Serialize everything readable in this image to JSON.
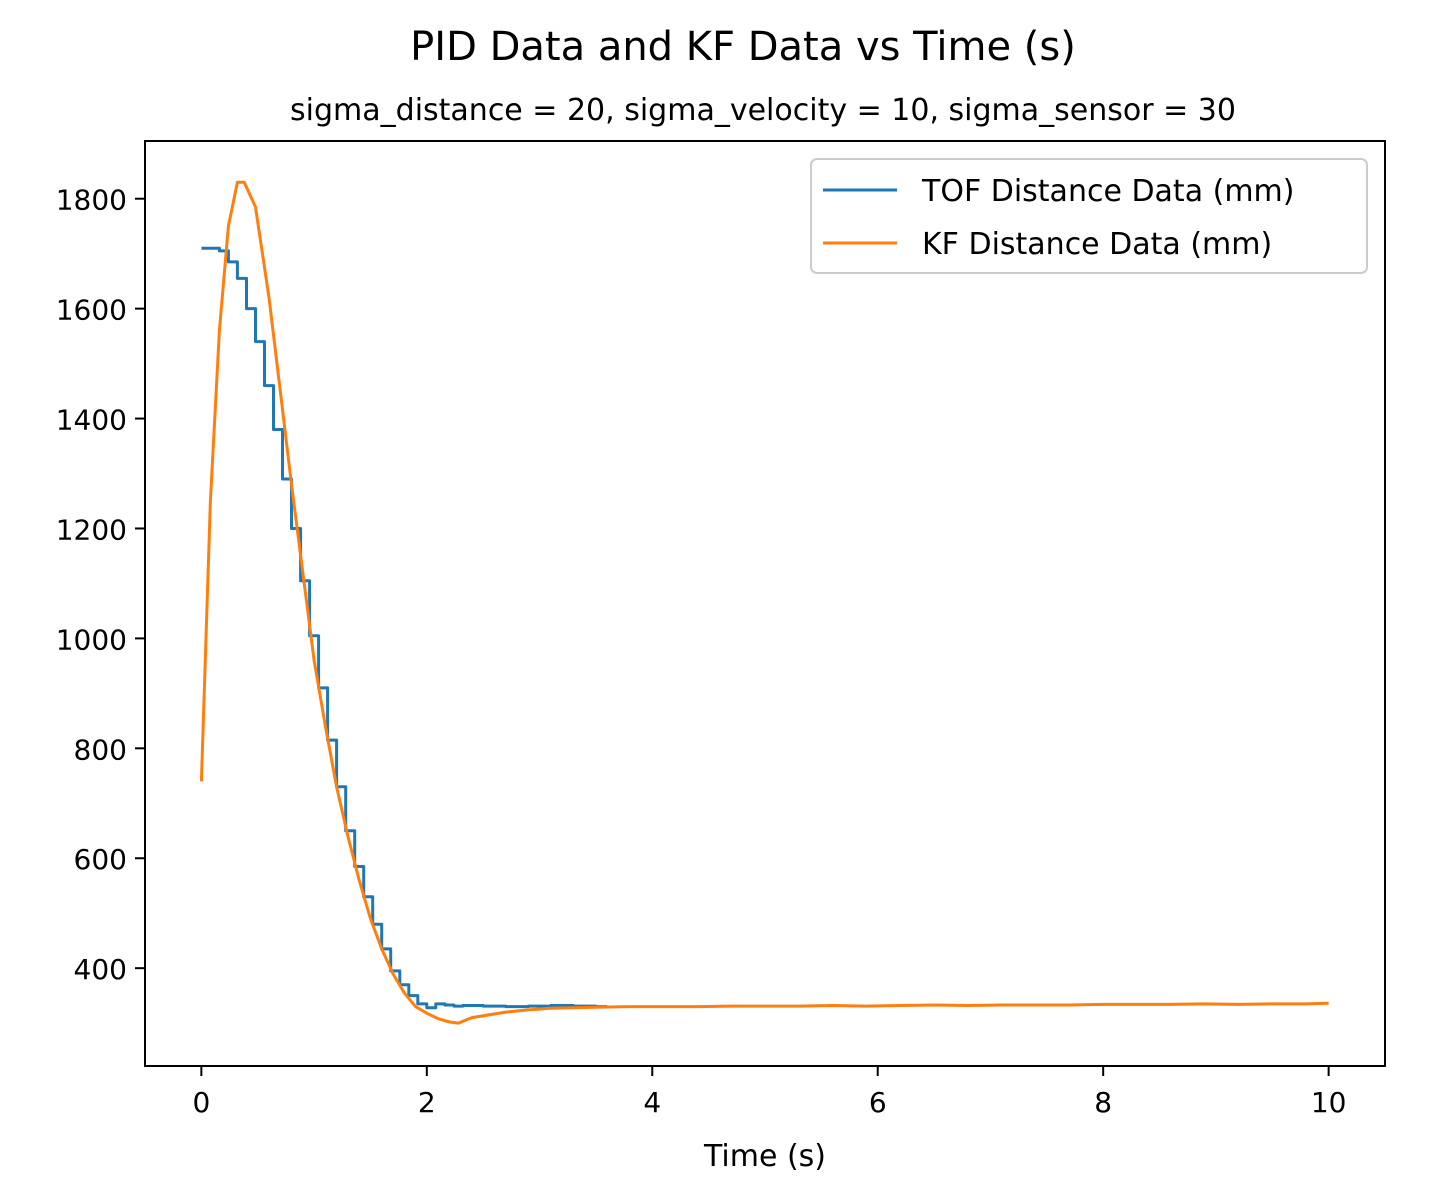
{
  "chart_data": {
    "type": "line",
    "title": "PID Data and KF Data vs Time (s)",
    "subtitle": "sigma_distance = 20, sigma_velocity = 10, sigma_sensor = 30",
    "xlabel": "Time (s)",
    "ylabel": "",
    "xlim": [
      -0.5,
      10.5
    ],
    "ylim": [
      222,
      1905
    ],
    "xticks": [
      0,
      2,
      4,
      6,
      8,
      10
    ],
    "yticks": [
      400,
      600,
      800,
      1000,
      1200,
      1400,
      1600,
      1800
    ],
    "grid": false,
    "legend_position": "top-right",
    "series": [
      {
        "name": "TOF Distance Data (mm)",
        "color": "#1f77b4",
        "step": true,
        "x": [
          0.0,
          0.08,
          0.16,
          0.24,
          0.32,
          0.4,
          0.48,
          0.56,
          0.64,
          0.72,
          0.8,
          0.88,
          0.96,
          1.04,
          1.12,
          1.2,
          1.28,
          1.36,
          1.44,
          1.52,
          1.6,
          1.68,
          1.76,
          1.84,
          1.92,
          2.0,
          2.08,
          2.16,
          2.24,
          2.32,
          2.5,
          2.7,
          2.9,
          3.1,
          3.3,
          3.5,
          3.6
        ],
        "y": [
          1710,
          1710,
          1705,
          1685,
          1655,
          1600,
          1540,
          1460,
          1380,
          1290,
          1200,
          1105,
          1005,
          910,
          815,
          730,
          650,
          585,
          530,
          480,
          435,
          395,
          370,
          350,
          335,
          328,
          335,
          333,
          331,
          332,
          331,
          330,
          331,
          332,
          331,
          330,
          330
        ]
      },
      {
        "name": "KF Distance Data (mm)",
        "color": "#ff7f0e",
        "step": false,
        "x": [
          0.0,
          0.08,
          0.16,
          0.24,
          0.32,
          0.38,
          0.48,
          0.6,
          0.7,
          0.8,
          0.9,
          1.0,
          1.1,
          1.2,
          1.3,
          1.4,
          1.5,
          1.6,
          1.7,
          1.8,
          1.9,
          2.0,
          2.1,
          2.2,
          2.28,
          2.4,
          2.55,
          2.7,
          2.9,
          3.1,
          3.3,
          3.5,
          3.8,
          4.1,
          4.4,
          4.7,
          5.0,
          5.3,
          5.6,
          5.9,
          6.2,
          6.5,
          6.8,
          7.1,
          7.4,
          7.7,
          8.0,
          8.3,
          8.6,
          8.9,
          9.2,
          9.5,
          9.8,
          10.0
        ],
        "y": [
          740,
          1250,
          1560,
          1750,
          1830,
          1830,
          1785,
          1620,
          1450,
          1280,
          1120,
          960,
          840,
          730,
          640,
          560,
          490,
          435,
          390,
          355,
          330,
          318,
          308,
          302,
          300,
          310,
          315,
          320,
          324,
          327,
          328,
          329,
          330,
          330,
          330,
          331,
          331,
          331,
          332,
          331,
          332,
          333,
          332,
          333,
          333,
          333,
          334,
          334,
          334,
          335,
          334,
          335,
          335,
          336
        ]
      }
    ]
  }
}
